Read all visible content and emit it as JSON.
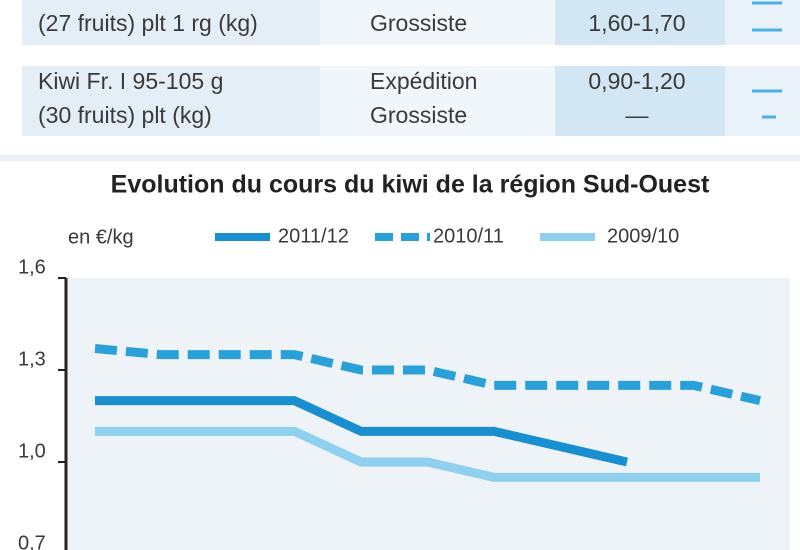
{
  "table": {
    "rows": [
      {
        "product": [
          "(27 fruits) plt 1 rg (kg)"
        ],
        "stage": [
          "Grossiste"
        ],
        "price": [
          "1,60-1,70"
        ]
      },
      {
        "product": [
          "Kiwi Fr. I 95-105 g",
          "(30 fruits) plt (kg)"
        ],
        "stage": [
          "Expédition",
          "Grossiste"
        ],
        "price": [
          "0,90-1,20",
          "—"
        ]
      }
    ]
  },
  "chart_data": {
    "type": "line",
    "title": "Evolution du cours du kiwi de la région Sud-Ouest",
    "y_label": "en €/kg",
    "categories": [
      null,
      null,
      null,
      null,
      null,
      null,
      null,
      null,
      null,
      null,
      null
    ],
    "series": [
      {
        "name": "2011/12",
        "color": "#1a8fd0",
        "style": "solid",
        "values": [
          1.2,
          1.2,
          1.2,
          1.2,
          1.1,
          1.1,
          1.1,
          1.05,
          1.0,
          null,
          null
        ]
      },
      {
        "name": "2010/11",
        "color": "#2aa0d8",
        "style": "dashed",
        "values": [
          1.37,
          1.35,
          1.35,
          1.35,
          1.3,
          1.3,
          1.25,
          1.25,
          1.25,
          1.25,
          1.2
        ]
      },
      {
        "name": "2009/10",
        "color": "#8fd0ee",
        "style": "solid",
        "values": [
          1.1,
          1.1,
          1.1,
          1.1,
          1.0,
          1.0,
          0.95,
          0.95,
          0.95,
          0.95,
          0.95
        ]
      }
    ],
    "ylim": [
      0.7,
      1.6
    ],
    "yticks": [
      {
        "value": 0.7,
        "label": "0,7"
      },
      {
        "value": 1.0,
        "label": "1,0"
      },
      {
        "value": 1.3,
        "label": "1,3"
      },
      {
        "value": 1.6,
        "label": "1,6"
      }
    ]
  }
}
